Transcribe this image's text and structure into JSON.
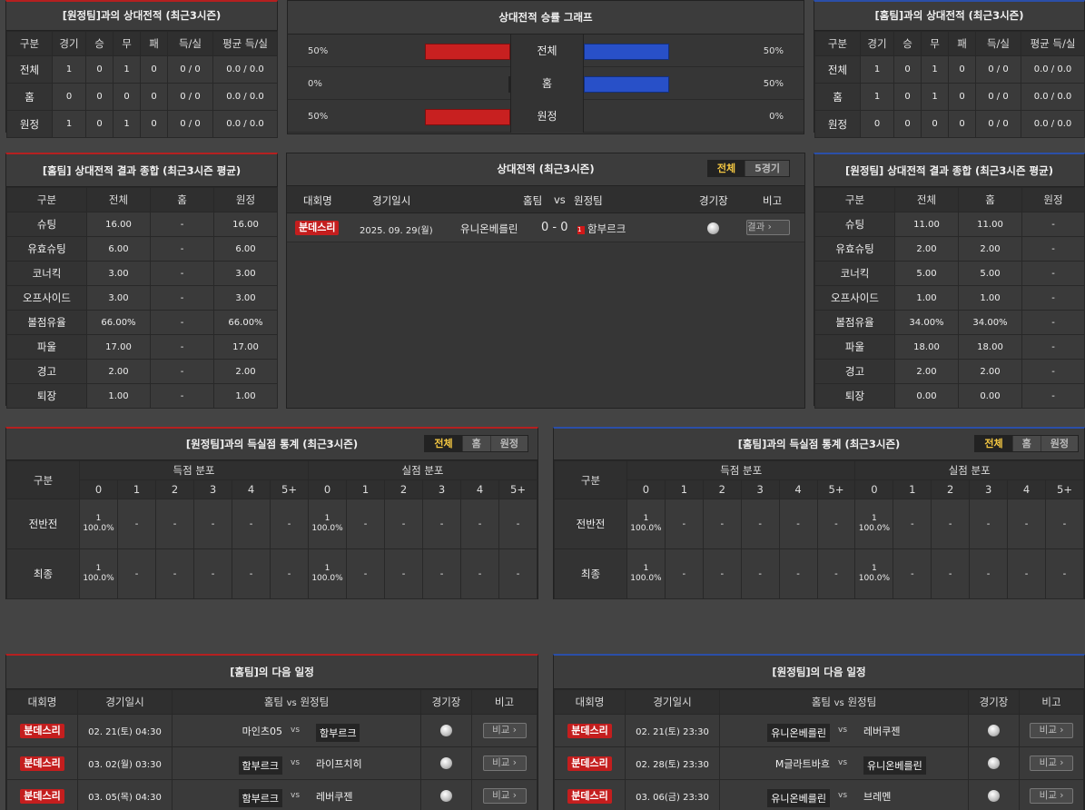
{
  "away_h2h": {
    "title": "[원정팀]과의 상대전적 (최근3시즌)",
    "headers": [
      "구분",
      "경기",
      "승",
      "무",
      "패",
      "득/실",
      "평균 득/실"
    ],
    "rows": [
      [
        "전체",
        "1",
        "0",
        "1",
        "0",
        "0 / 0",
        "0.0 / 0.0"
      ],
      [
        "홈",
        "0",
        "0",
        "0",
        "0",
        "0 / 0",
        "0.0 / 0.0"
      ],
      [
        "원정",
        "1",
        "0",
        "1",
        "0",
        "0 / 0",
        "0.0 / 0.0"
      ]
    ]
  },
  "graph": {
    "title": "상대전적 승률 그래프",
    "rows": [
      {
        "label": "전체",
        "left_pct": "50%",
        "right_pct": "50%",
        "left_val": 50,
        "right_val": 50
      },
      {
        "label": "홈",
        "left_pct": "0%",
        "right_pct": "50%",
        "left_val": 0,
        "right_val": 50
      },
      {
        "label": "원정",
        "left_pct": "50%",
        "right_pct": "0%",
        "left_val": 50,
        "right_val": 0
      }
    ]
  },
  "home_h2h": {
    "title": "[홈팀]과의 상대전적 (최근3시즌)",
    "headers": [
      "구분",
      "경기",
      "승",
      "무",
      "패",
      "득/실",
      "평균 득/실"
    ],
    "rows": [
      [
        "전체",
        "1",
        "0",
        "1",
        "0",
        "0 / 0",
        "0.0 / 0.0"
      ],
      [
        "홈",
        "1",
        "0",
        "1",
        "0",
        "0 / 0",
        "0.0 / 0.0"
      ],
      [
        "원정",
        "0",
        "0",
        "0",
        "0",
        "0 / 0",
        "0.0 / 0.0"
      ]
    ]
  },
  "home_summary": {
    "title": "[홈팀] 상대전적 결과 종합 (최근3시즌 평균)",
    "headers": [
      "구분",
      "전체",
      "홈",
      "원정"
    ],
    "rows": [
      [
        "슈팅",
        "16.00",
        "-",
        "16.00"
      ],
      [
        "유효슈팅",
        "6.00",
        "-",
        "6.00"
      ],
      [
        "코너킥",
        "3.00",
        "-",
        "3.00"
      ],
      [
        "오프사이드",
        "3.00",
        "-",
        "3.00"
      ],
      [
        "볼점유율",
        "66.00%",
        "-",
        "66.00%"
      ],
      [
        "파울",
        "17.00",
        "-",
        "17.00"
      ],
      [
        "경고",
        "2.00",
        "-",
        "2.00"
      ],
      [
        "퇴장",
        "1.00",
        "-",
        "1.00"
      ]
    ]
  },
  "h2h_matches": {
    "title": "상대전적 (최근3시즌)",
    "tabs": [
      "전체",
      "5경기"
    ],
    "headers": {
      "league": "대회명",
      "date": "경기일시",
      "home": "홈팀",
      "vs": "vs",
      "away": "원정팀",
      "venue": "경기장",
      "note": "비고"
    },
    "rows": [
      {
        "league": "분데스리",
        "date": "2025. 09. 29(월)",
        "home": "유니온베를린",
        "score": "0 - 0",
        "red": "1",
        "away": "함부르크",
        "note": "결과"
      }
    ]
  },
  "away_summary": {
    "title": "[원정팀] 상대전적 결과 종합 (최근3시즌 평균)",
    "headers": [
      "구분",
      "전체",
      "홈",
      "원정"
    ],
    "rows": [
      [
        "슈팅",
        "11.00",
        "11.00",
        "-"
      ],
      [
        "유효슈팅",
        "2.00",
        "2.00",
        "-"
      ],
      [
        "코너킥",
        "5.00",
        "5.00",
        "-"
      ],
      [
        "오프사이드",
        "1.00",
        "1.00",
        "-"
      ],
      [
        "볼점유율",
        "34.00%",
        "34.00%",
        "-"
      ],
      [
        "파울",
        "18.00",
        "18.00",
        "-"
      ],
      [
        "경고",
        "2.00",
        "2.00",
        "-"
      ],
      [
        "퇴장",
        "0.00",
        "0.00",
        "-"
      ]
    ]
  },
  "goal_stats_left": {
    "title": "[원정팀]과의 득실점 통계 (최근3시즌)",
    "tabs": [
      "전체",
      "홈",
      "원정"
    ],
    "col_head": "구분",
    "scored_head": "득점 분포",
    "conceded_head": "실점 분포",
    "bins": [
      "0",
      "1",
      "2",
      "3",
      "4",
      "5+"
    ],
    "rows": [
      {
        "label": "전반전",
        "scored": [
          [
            "1",
            "100.0%"
          ],
          "-",
          "-",
          "-",
          "-",
          "-"
        ],
        "conceded": [
          [
            "1",
            "100.0%"
          ],
          "-",
          "-",
          "-",
          "-",
          "-"
        ]
      },
      {
        "label": "최종",
        "scored": [
          [
            "1",
            "100.0%"
          ],
          "-",
          "-",
          "-",
          "-",
          "-"
        ],
        "conceded": [
          [
            "1",
            "100.0%"
          ],
          "-",
          "-",
          "-",
          "-",
          "-"
        ]
      }
    ]
  },
  "goal_stats_right": {
    "title": "[홈팀]과의 득실점 통계 (최근3시즌)",
    "tabs": [
      "전체",
      "홈",
      "원정"
    ],
    "col_head": "구분",
    "scored_head": "득점 분포",
    "conceded_head": "실점 분포",
    "bins": [
      "0",
      "1",
      "2",
      "3",
      "4",
      "5+"
    ],
    "rows": [
      {
        "label": "전반전",
        "scored": [
          [
            "1",
            "100.0%"
          ],
          "-",
          "-",
          "-",
          "-",
          "-"
        ],
        "conceded": [
          [
            "1",
            "100.0%"
          ],
          "-",
          "-",
          "-",
          "-",
          "-"
        ]
      },
      {
        "label": "최종",
        "scored": [
          [
            "1",
            "100.0%"
          ],
          "-",
          "-",
          "-",
          "-",
          "-"
        ],
        "conceded": [
          [
            "1",
            "100.0%"
          ],
          "-",
          "-",
          "-",
          "-",
          "-"
        ]
      }
    ]
  },
  "home_next": {
    "title": "[홈팀]의 다음 일정",
    "headers": {
      "league": "대회명",
      "date": "경기일시",
      "home": "홈팀",
      "vs": "vs",
      "away": "원정팀",
      "venue": "경기장",
      "note": "비고"
    },
    "rows": [
      {
        "league": "분데스리",
        "date": "02. 21(토) 04:30",
        "home": "마인츠05",
        "vs": "vs",
        "away": "함부르크",
        "boxed": "away",
        "note": "비교"
      },
      {
        "league": "분데스리",
        "date": "03. 02(월) 03:30",
        "home": "함부르크",
        "vs": "vs",
        "away": "라이프치히",
        "boxed": "home",
        "note": "비교"
      },
      {
        "league": "분데스리",
        "date": "03. 05(목) 04:30",
        "home": "함부르크",
        "vs": "vs",
        "away": "레버쿠젠",
        "boxed": "home",
        "note": "비교"
      }
    ]
  },
  "away_next": {
    "title": "[원정팀]의 다음 일정",
    "headers": {
      "league": "대회명",
      "date": "경기일시",
      "home": "홈팀",
      "vs": "vs",
      "away": "원정팀",
      "venue": "경기장",
      "note": "비고"
    },
    "rows": [
      {
        "league": "분데스리",
        "date": "02. 21(토) 23:30",
        "home": "유니온베를린",
        "vs": "vs",
        "away": "레버쿠젠",
        "boxed": "home",
        "note": "비교"
      },
      {
        "league": "분데스리",
        "date": "02. 28(토) 23:30",
        "home": "M글라트바흐",
        "vs": "vs",
        "away": "유니온베를린",
        "boxed": "away",
        "note": "비교"
      },
      {
        "league": "분데스리",
        "date": "03. 06(금) 23:30",
        "home": "유니온베를린",
        "vs": "vs",
        "away": "브레멘",
        "boxed": "home",
        "note": "비교"
      }
    ]
  },
  "colors": {
    "accent_red": "#c41e1e",
    "accent_blue": "#2850c8",
    "tab_active": "#f5c842"
  }
}
